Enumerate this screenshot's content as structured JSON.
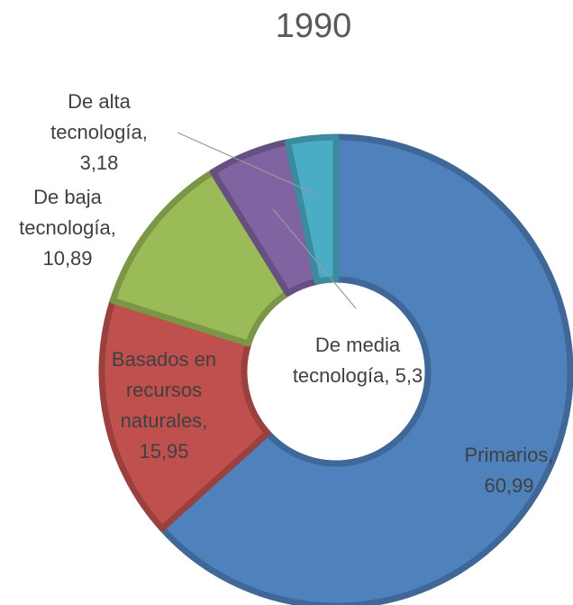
{
  "chart_data": {
    "type": "donut",
    "title": "1990",
    "categories": [
      "Primarios",
      "Basados en recursos naturales",
      "De baja tecnología",
      "De media tecnología",
      "De alta tecnología"
    ],
    "values": [
      60.99,
      15.95,
      10.89,
      5.3,
      3.18
    ],
    "value_labels": [
      "60,99",
      "15,95",
      "10,89",
      "5,3",
      "3,18"
    ],
    "label_separator": ",",
    "colors": [
      "#4f81bd",
      "#c0504d",
      "#9bbb59",
      "#8064a2",
      "#4bacc6"
    ]
  }
}
